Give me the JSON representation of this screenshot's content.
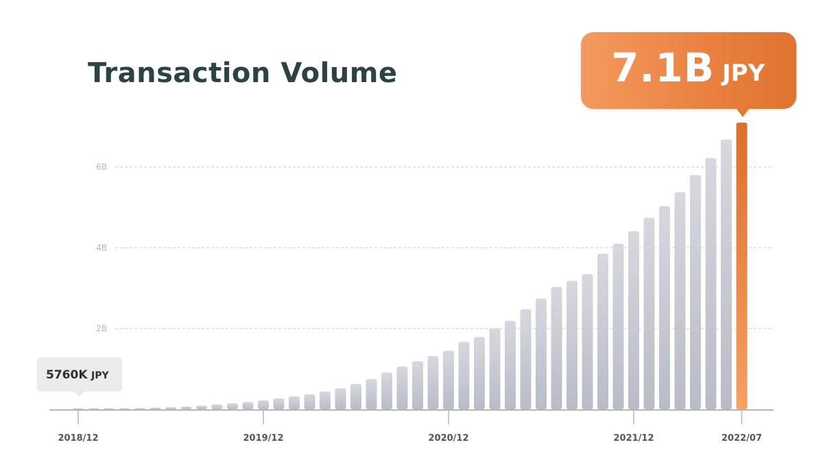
{
  "title": "Transaction Volume",
  "callouts": {
    "latest": {
      "value": "7.1B",
      "unit": "JPY"
    },
    "first": {
      "value": "5760K",
      "unit": "JPY"
    }
  },
  "colors": {
    "bar": "#c9ccd4",
    "highlight": "#f0843d",
    "grid": "#c8c8c8",
    "axis": "#b5b5b5",
    "tick_text": "#555555",
    "y_tick_text": "#b8b8b8"
  },
  "chart_data": {
    "type": "bar",
    "title": "Transaction Volume",
    "xlabel": "",
    "ylabel": "",
    "ylim": [
      0,
      7.15
    ],
    "y_unit": "B JPY",
    "grid": "horizontal dashed",
    "y_ticks": [
      {
        "value": 2,
        "label": "2B"
      },
      {
        "value": 4,
        "label": "4B"
      },
      {
        "value": 6,
        "label": "6B"
      }
    ],
    "x_ticks": [
      {
        "index": 0,
        "label": "2018/12"
      },
      {
        "index": 12,
        "label": "2019/12"
      },
      {
        "index": 24,
        "label": "2020/12"
      },
      {
        "index": 36,
        "label": "2021/12"
      },
      {
        "index": 43,
        "label": "2022/07"
      }
    ],
    "highlight_index": 43,
    "values": [
      0.00576,
      0.01,
      0.01,
      0.02,
      0.03,
      0.04,
      0.05,
      0.07,
      0.09,
      0.12,
      0.15,
      0.18,
      0.22,
      0.27,
      0.32,
      0.37,
      0.44,
      0.52,
      0.63,
      0.75,
      0.91,
      1.06,
      1.19,
      1.32,
      1.45,
      1.67,
      1.79,
      2.0,
      2.19,
      2.48,
      2.74,
      3.03,
      3.18,
      3.35,
      3.85,
      4.1,
      4.41,
      4.74,
      5.03,
      5.38,
      5.8,
      6.22,
      6.68,
      7.1
    ]
  }
}
